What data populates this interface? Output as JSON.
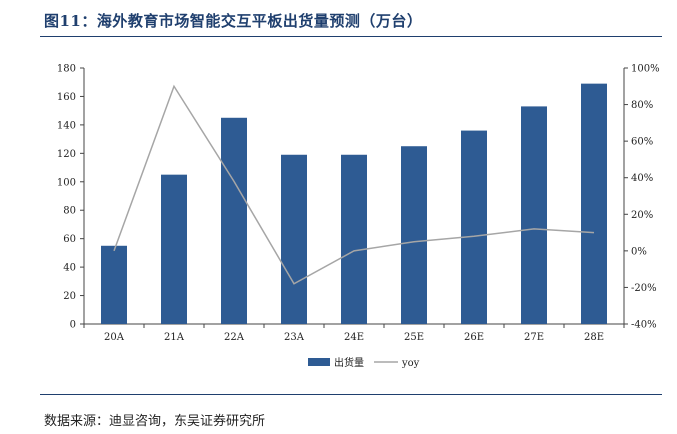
{
  "title": "图11：海外教育市场智能交互平板出货量预测（万台）",
  "source": "数据来源：迪显咨询，东吴证券研究所",
  "colors": {
    "bar": "#2e5b93",
    "line": "#a6a6a6",
    "title": "#1f3f6e"
  },
  "chart_data": {
    "type": "bar",
    "categories": [
      "20A",
      "21A",
      "22A",
      "23A",
      "24E",
      "25E",
      "26E",
      "27E",
      "28E"
    ],
    "series": [
      {
        "name": "出货量",
        "type": "bar",
        "axis": "left",
        "values": [
          55,
          105,
          145,
          119,
          119,
          125,
          136,
          153,
          169
        ]
      },
      {
        "name": "yoy",
        "type": "line",
        "axis": "right",
        "values": [
          null,
          0.9,
          0.38,
          -0.18,
          0.0,
          0.05,
          0.08,
          0.12,
          0.1
        ]
      }
    ],
    "ylim_left": [
      0,
      180
    ],
    "yticks_left": [
      "0",
      "20",
      "40",
      "60",
      "80",
      "100",
      "120",
      "140",
      "160",
      "180"
    ],
    "ylim_right": [
      -0.4,
      1.0
    ],
    "yticks_right": [
      "-40%",
      "-20%",
      "0%",
      "20%",
      "40%",
      "60%",
      "80%",
      "100%"
    ],
    "legend_position": "bottom",
    "grid": false
  }
}
